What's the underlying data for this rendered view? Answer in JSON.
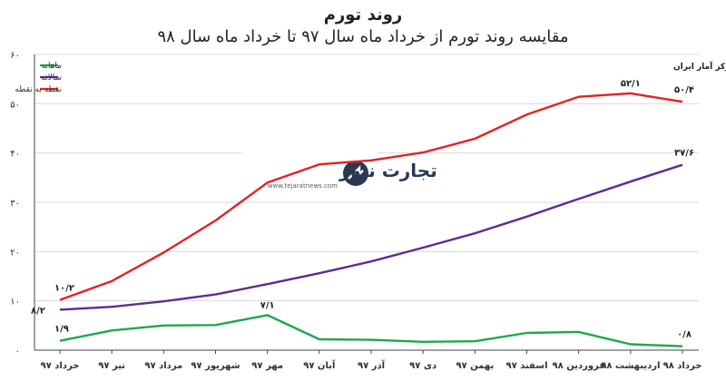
{
  "title": "روند تورم",
  "subtitle": "مقایسه روند تورم از خرداد ماه سال ۹۷ تا خرداد ماه سال ۹۸",
  "source": "منبع: مرکز آمار ایران",
  "watermark": {
    "name": "تجارت نیوز",
    "site": "www.tejaratnews.com"
  },
  "colors": {
    "monthly": "#1ea84b",
    "annual": "#5b2d91",
    "point": "#e32222",
    "grid": "#d9d9d9",
    "axis": "#444444"
  },
  "chart_data": {
    "type": "line",
    "title": "روند تورم",
    "subtitle": "مقایسه روند تورم از خرداد ماه سال ۹۷ تا خرداد ماه سال ۹۸",
    "categories": [
      "خرداد ۹۷",
      "تیر ۹۷",
      "مرداد ۹۷",
      "شهریور ۹۷",
      "مهر ۹۷",
      "آبان ۹۷",
      "آذر ۹۷",
      "دی ۹۷",
      "بهمن ۹۷",
      "اسفند ۹۷",
      "فروردین ۹۸",
      "اردیبهشت ۹۸",
      "خرداد ۹۸"
    ],
    "ylim": [
      0,
      60
    ],
    "yticks": [
      "۰",
      "۱۰",
      "۲۰",
      "۳۰",
      "۴۰",
      "۵۰",
      "۶۰"
    ],
    "grid": true,
    "legend_position": "top-left",
    "series": [
      {
        "name": "ماهانه",
        "key": "monthly",
        "values": [
          1.9,
          4.0,
          5.0,
          5.1,
          7.1,
          2.2,
          2.1,
          1.7,
          1.8,
          3.5,
          3.7,
          1.2,
          0.8
        ]
      },
      {
        "name": "سالانه",
        "key": "annual",
        "values": [
          8.2,
          8.8,
          9.9,
          11.3,
          13.4,
          15.6,
          18.0,
          20.8,
          23.7,
          27.1,
          30.7,
          34.2,
          37.6
        ]
      },
      {
        "name": "نقطه به نقطه",
        "key": "point",
        "values": [
          10.2,
          14.0,
          19.8,
          26.3,
          34.0,
          37.7,
          38.5,
          40.1,
          42.9,
          47.8,
          51.4,
          52.1,
          50.4
        ]
      }
    ],
    "annotations": [
      {
        "series": "point",
        "index": 0,
        "text": "۱۰/۲"
      },
      {
        "series": "annual",
        "index": 0,
        "text": "۸/۲"
      },
      {
        "series": "monthly",
        "index": 0,
        "text": "۱/۹"
      },
      {
        "series": "monthly",
        "index": 4,
        "text": "۷/۱"
      },
      {
        "series": "point",
        "index": 11,
        "text": "۵۲/۱"
      },
      {
        "series": "point",
        "index": 12,
        "text": "۵۰/۴"
      },
      {
        "series": "annual",
        "index": 12,
        "text": "۳۷/۶"
      },
      {
        "series": "monthly",
        "index": 12,
        "text": "۰/۸"
      }
    ]
  }
}
